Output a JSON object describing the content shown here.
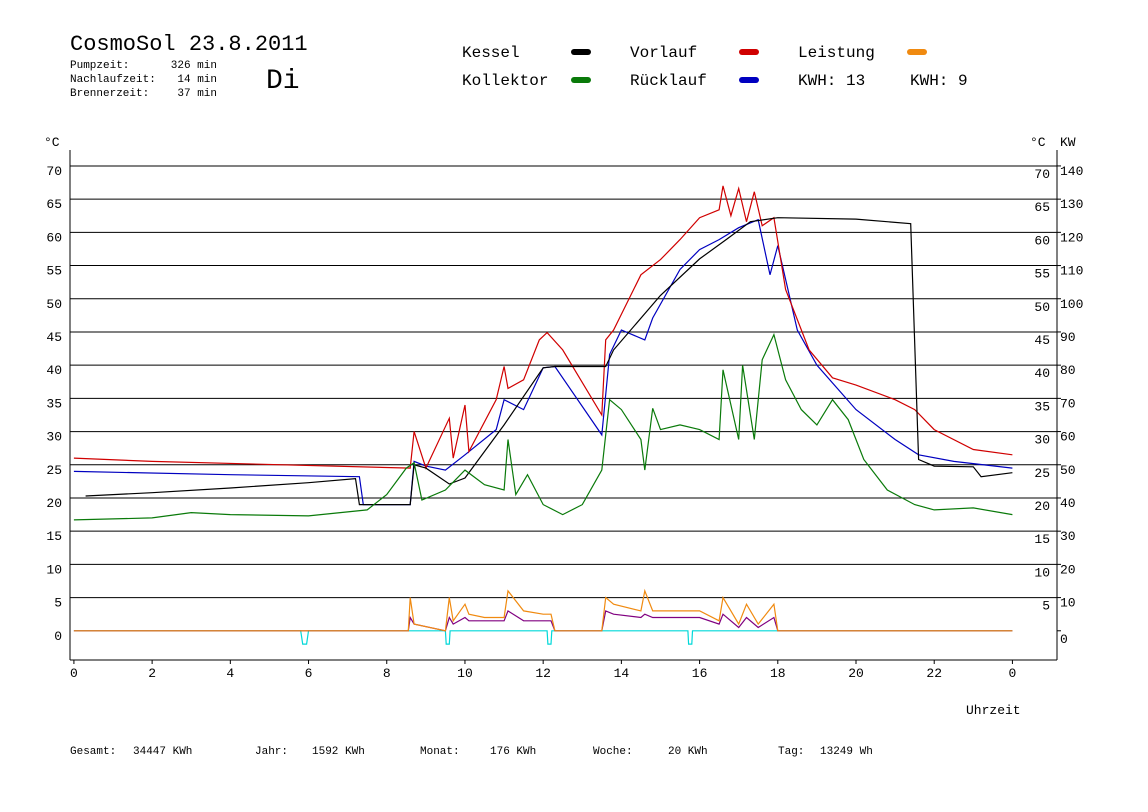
{
  "chart_data": {
    "type": "line",
    "title": "CosmoSol 23.8.2011",
    "weekday": "Di",
    "info": [
      {
        "label": "Pumpzeit:",
        "value": "326 min"
      },
      {
        "label": "Nachlaufzeit:",
        "value": "14 min"
      },
      {
        "label": "Brennerzeit:",
        "value": "37 min"
      }
    ],
    "annotations": [
      {
        "text": "KWH: 13",
        "color": "#f08a10"
      },
      {
        "text": "KWH: 9",
        "color": "#800080"
      }
    ],
    "stats": [
      {
        "label": "Gesamt:",
        "value": "34447 KWh"
      },
      {
        "label": "Jahr:",
        "value": "1592 KWh"
      },
      {
        "label": "Monat:",
        "value": "176 KWh"
      },
      {
        "label": "Woche:",
        "value": "20 KWh"
      },
      {
        "label": "Tag:",
        "value": "13249 Wh"
      }
    ],
    "x_label": "Uhrzeit",
    "y_label": "°C",
    "y2_label": "KW",
    "xlim": [
      -0.1,
      25.14
    ],
    "xticks": [
      0,
      2,
      4,
      6,
      8,
      10,
      12,
      14,
      16,
      18,
      20,
      22,
      {
        "value": 24,
        "label": "0"
      }
    ],
    "ylim": [
      -4.4,
      72.4
    ],
    "yticks": [
      0,
      5,
      10,
      15,
      20,
      25,
      30,
      35,
      40,
      45,
      50,
      55,
      60,
      65,
      70
    ],
    "y2lim": [
      -8.8,
      144.8
    ],
    "y2ticks": [
      0,
      10,
      20,
      30,
      40,
      50,
      60,
      70,
      80,
      90,
      100,
      110,
      120,
      130,
      140
    ],
    "grid": true,
    "series": [
      {
        "name": "Kessel",
        "color": "#000000",
        "x": [
          0.3,
          2,
          4,
          6,
          7.2,
          7.3,
          8.6,
          8.7,
          9.0,
          9.6,
          10.0,
          11.0,
          12.0,
          12.3,
          13.6,
          13.8,
          15.0,
          16.0,
          16.7,
          17.3,
          18.0,
          20.0,
          21.4,
          21.6,
          22.0,
          23.0,
          23.2,
          24.0
        ],
        "values": [
          20.3,
          20.8,
          21.5,
          22.3,
          22.9,
          19,
          19,
          25,
          24.5,
          22.1,
          23,
          31,
          39.6,
          39.8,
          39.8,
          42.3,
          50.5,
          56,
          59,
          61.6,
          62.2,
          62,
          61.3,
          25.8,
          24.8,
          24.7,
          23.2,
          23.8
        ]
      },
      {
        "name": "Kollektor",
        "color": "#0a7a0a",
        "x": [
          0,
          2,
          3,
          4,
          6,
          7.5,
          8.0,
          8.5,
          8.7,
          8.9,
          9.5,
          10.0,
          10.5,
          11.0,
          11.1,
          11.3,
          11.6,
          12.0,
          12.5,
          13.0,
          13.5,
          13.7,
          14.0,
          14.5,
          14.6,
          14.8,
          15.0,
          15.5,
          16.0,
          16.5,
          16.6,
          17.0,
          17.1,
          17.4,
          17.6,
          17.9,
          18.2,
          18.6,
          19.0,
          19.4,
          19.8,
          20.2,
          20.8,
          21.5,
          22.0,
          23.0,
          24.0
        ],
        "values": [
          16.7,
          17,
          17.8,
          17.5,
          17.3,
          18.2,
          20.5,
          24.5,
          25.3,
          19.7,
          21.2,
          24.2,
          22,
          21.2,
          28.8,
          20.5,
          23.5,
          19,
          17.5,
          19,
          24.2,
          34.8,
          33.3,
          28.8,
          24.2,
          33.5,
          30.3,
          31,
          30.3,
          28.8,
          39.3,
          28.8,
          40,
          28.8,
          40.8,
          44.6,
          37.8,
          33.3,
          31,
          34.8,
          31.8,
          25.8,
          21.2,
          19,
          18.2,
          18.5,
          17.5
        ]
      },
      {
        "name": "Vorlauf",
        "color": "#d00000",
        "x": [
          0,
          2,
          8.6,
          8.7,
          9.0,
          9.6,
          9.7,
          10.0,
          10.1,
          10.8,
          11.0,
          11.1,
          11.5,
          11.9,
          12.1,
          12.5,
          13.5,
          13.6,
          13.8,
          14.5,
          15.0,
          15.5,
          16.0,
          16.5,
          16.6,
          16.8,
          17.0,
          17.2,
          17.4,
          17.6,
          17.9,
          18.2,
          18.8,
          19.4,
          20.0,
          21.0,
          21.5,
          22.0,
          23.0,
          24.0
        ],
        "values": [
          26,
          25.5,
          24.5,
          30,
          24.5,
          32,
          26,
          34,
          27,
          34.8,
          39.8,
          36.5,
          37.8,
          43.8,
          44.9,
          42.3,
          32.5,
          43.8,
          45.3,
          53.6,
          55.9,
          58.9,
          62.2,
          63.4,
          67,
          62.5,
          66.6,
          61.6,
          66.1,
          61,
          62.2,
          51.4,
          42.3,
          38.1,
          37,
          34.8,
          33.3,
          30.3,
          27.3,
          26.5
        ]
      },
      {
        "name": "Rücklauf",
        "color": "#0000c0",
        "x": [
          0,
          4,
          7.3,
          7.4,
          8.6,
          8.7,
          9.0,
          9.5,
          10.0,
          10.8,
          11.0,
          11.5,
          12.0,
          12.3,
          13.5,
          13.7,
          14.0,
          14.6,
          14.8,
          15.5,
          16.0,
          16.5,
          17.0,
          17.5,
          17.8,
          18.0,
          18.5,
          19.0,
          20.0,
          21.0,
          21.6,
          22.5,
          24.0
        ],
        "values": [
          24,
          23.5,
          23.2,
          19,
          19,
          25.5,
          24.8,
          24.2,
          26.5,
          30.3,
          34.8,
          33.3,
          39.6,
          39.8,
          29.5,
          41.6,
          45.3,
          43.8,
          47.1,
          54.4,
          57.4,
          58.9,
          60.7,
          61.9,
          53.6,
          58,
          45.3,
          40,
          33.3,
          28.8,
          26.5,
          25.5,
          24.5
        ]
      },
      {
        "name": "Leistung",
        "color": "#f08a10",
        "axis": "y2",
        "x": [
          0,
          8.55,
          8.6,
          8.7,
          9.5,
          9.6,
          9.7,
          10.0,
          10.1,
          10.5,
          11.0,
          11.1,
          11.5,
          12.0,
          12.2,
          12.3,
          13.5,
          13.6,
          13.8,
          14.5,
          14.6,
          14.8,
          15.5,
          16.0,
          16.5,
          16.6,
          17.0,
          17.2,
          17.5,
          17.9,
          18.0,
          24.0
        ],
        "values": [
          0,
          0,
          10,
          2,
          0,
          10,
          3,
          8,
          5,
          4,
          4,
          12,
          6,
          5,
          5,
          0,
          0,
          10,
          8,
          6,
          12,
          6,
          6,
          6,
          3,
          10,
          2,
          8,
          2,
          8,
          0,
          0
        ]
      },
      {
        "color": "#800080",
        "axis": "y2",
        "x": [
          0,
          8.55,
          8.6,
          8.7,
          9.5,
          9.6,
          9.7,
          10.0,
          10.1,
          10.5,
          11.0,
          11.1,
          11.5,
          12.0,
          12.2,
          12.3,
          13.5,
          13.6,
          13.8,
          14.5,
          14.6,
          14.8,
          15.5,
          16.0,
          16.5,
          16.6,
          17.0,
          17.2,
          17.5,
          17.9,
          18.0,
          24.0
        ],
        "values": [
          0,
          0,
          4,
          2,
          0,
          4,
          2,
          4,
          3,
          3,
          3,
          6,
          3,
          3,
          3,
          0,
          0,
          6,
          5,
          4,
          5,
          4,
          4,
          4,
          2,
          5,
          1,
          4,
          1,
          4,
          0,
          0
        ]
      },
      {
        "color": "#00d8d8",
        "x": [
          0,
          5.8,
          5.85,
          5.95,
          6.0,
          9.5,
          9.52,
          9.6,
          9.62,
          12.1,
          12.12,
          12.2,
          12.22,
          15.7,
          15.72,
          15.8,
          15.82,
          24.0
        ],
        "values": [
          0,
          0,
          -2,
          -2,
          0,
          0,
          -2,
          -2,
          0,
          0,
          -2,
          -2,
          0,
          0,
          -2,
          -2,
          0,
          0
        ]
      }
    ]
  }
}
